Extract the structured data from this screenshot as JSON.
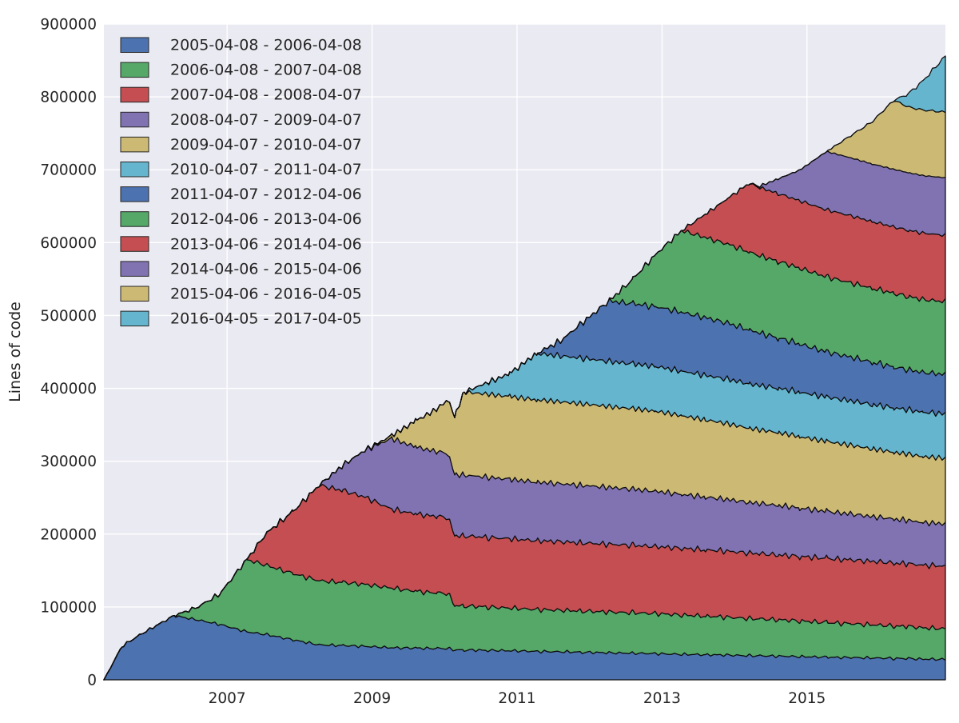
{
  "chart_data": {
    "type": "area",
    "stacked": true,
    "title": "",
    "xlabel": "",
    "ylabel": "Lines of code",
    "xlim": [
      2005.3,
      2016.91
    ],
    "ylim": [
      0,
      900000
    ],
    "grid": true,
    "legend_position": "upper left",
    "x_ticks": {
      "values": [
        2007,
        2009,
        2011,
        2013,
        2015
      ],
      "labels": [
        "2007",
        "2009",
        "2011",
        "2013",
        "2015"
      ]
    },
    "y_ticks": {
      "values": [
        0,
        100000,
        200000,
        300000,
        400000,
        500000,
        600000,
        700000,
        800000,
        900000
      ],
      "labels": [
        "0",
        "100000",
        "200000",
        "300000",
        "400000",
        "500000",
        "600000",
        "700000",
        "800000",
        "900000"
      ]
    },
    "x": [
      2005.3,
      2005.55,
      2005.8,
      2006.05,
      2006.27,
      2006.6,
      2006.9,
      2007.27,
      2007.55,
      2007.9,
      2008.27,
      2008.6,
      2008.9,
      2009.27,
      2009.6,
      2009.9,
      2010.05,
      2010.14,
      2010.27,
      2010.6,
      2010.9,
      2011.27,
      2011.6,
      2011.9,
      2012.27,
      2012.6,
      2012.9,
      2013.27,
      2013.6,
      2013.9,
      2014.2,
      2014.35,
      2014.6,
      2014.9,
      2015.27,
      2015.6,
      2015.9,
      2016.2,
      2016.4,
      2016.6,
      2016.91
    ],
    "series": [
      {
        "name": "2005-04-08 - 2006-04-08",
        "color": "#4C72B0",
        "values": [
          0,
          46000,
          62000,
          76000,
          88000,
          82000,
          76000,
          66000,
          62000,
          55000,
          48000,
          47000,
          46000,
          44000,
          43500,
          43000,
          43000,
          41000,
          41000,
          40500,
          40000,
          39000,
          38500,
          38000,
          37000,
          36500,
          36000,
          35000,
          34500,
          34000,
          33000,
          33000,
          32500,
          32000,
          31000,
          30500,
          30000,
          29500,
          29000,
          28500,
          28000
        ]
      },
      {
        "name": "2006-04-08 - 2007-04-08",
        "color": "#55A868",
        "values": [
          0,
          0,
          0,
          0,
          0,
          18000,
          42000,
          99000,
          95000,
          91000,
          88000,
          86500,
          85000,
          82000,
          78000,
          76000,
          75500,
          61000,
          60500,
          59500,
          58500,
          57500,
          57000,
          56500,
          56000,
          55500,
          55000,
          54000,
          53000,
          52000,
          51000,
          50500,
          50000,
          49000,
          47500,
          46500,
          45500,
          44500,
          44000,
          43000,
          42000
        ]
      },
      {
        "name": "2007-04-08 - 2008-04-07",
        "color": "#C44E52",
        "values": [
          0,
          0,
          0,
          0,
          0,
          0,
          0,
          0,
          45000,
          84000,
          131000,
          126000,
          120000,
          108000,
          106000,
          105000,
          104500,
          96000,
          96000,
          95500,
          95000,
          94500,
          94000,
          93500,
          93000,
          92500,
          92000,
          91500,
          91000,
          90500,
          90000,
          89500,
          89000,
          88500,
          88000,
          87500,
          87000,
          86500,
          86000,
          86000,
          86000
        ]
      },
      {
        "name": "2008-04-07 - 2009-04-07",
        "color": "#8172B2",
        "values": [
          0,
          0,
          0,
          0,
          0,
          0,
          0,
          0,
          0,
          0,
          0,
          35000,
          64000,
          97000,
          92000,
          89000,
          88000,
          84000,
          83500,
          82500,
          81500,
          80500,
          79500,
          79000,
          78000,
          77000,
          76000,
          74000,
          72500,
          71000,
          69500,
          69000,
          68000,
          66500,
          64500,
          63000,
          61500,
          60500,
          59500,
          58500,
          58000
        ]
      },
      {
        "name": "2009-04-07 - 2010-04-07",
        "color": "#CCB974",
        "values": [
          0,
          0,
          0,
          0,
          0,
          0,
          0,
          0,
          0,
          0,
          0,
          0,
          0,
          4000,
          35500,
          59000,
          74000,
          80000,
          114000,
          114000,
          113500,
          113000,
          112500,
          112000,
          111000,
          110500,
          110000,
          108000,
          106000,
          104000,
          102000,
          101000,
          100000,
          98000,
          96000,
          94500,
          93000,
          91500,
          91000,
          90500,
          90000
        ]
      },
      {
        "name": "2010-04-07 - 2011-04-07",
        "color": "#64B5CD",
        "values": [
          0,
          0,
          0,
          0,
          0,
          0,
          0,
          0,
          0,
          0,
          0,
          0,
          0,
          0,
          0,
          0,
          0,
          0,
          0,
          16000,
          31500,
          63500,
          63000,
          62500,
          62000,
          61500,
          61500,
          61000,
          61000,
          61000,
          61000,
          61000,
          61000,
          61000,
          61000,
          61000,
          61000,
          61000,
          61000,
          61000,
          61000
        ]
      },
      {
        "name": "2011-04-07 - 2012-04-06",
        "color": "#4C72B0",
        "values": [
          0,
          0,
          0,
          0,
          0,
          0,
          0,
          0,
          0,
          0,
          0,
          0,
          0,
          0,
          0,
          0,
          0,
          0,
          0,
          0,
          0,
          0,
          20500,
          48500,
          83000,
          82500,
          82000,
          81000,
          79000,
          77000,
          74000,
          72000,
          69000,
          66000,
          62000,
          60000,
          58000,
          56000,
          55000,
          54500,
          54000
        ]
      },
      {
        "name": "2012-04-06 - 2013-04-06",
        "color": "#55A868",
        "values": [
          0,
          0,
          0,
          0,
          0,
          0,
          0,
          0,
          0,
          0,
          0,
          0,
          0,
          0,
          0,
          0,
          0,
          0,
          0,
          0,
          0,
          0,
          0,
          0,
          0,
          34000,
          70000,
          112000,
          110000,
          108500,
          107000,
          106000,
          105000,
          104000,
          103000,
          102000,
          101500,
          101000,
          100500,
          100000,
          100000
        ]
      },
      {
        "name": "2013-04-06 - 2014-04-06",
        "color": "#C44E52",
        "values": [
          0,
          0,
          0,
          0,
          0,
          0,
          0,
          0,
          0,
          0,
          0,
          0,
          0,
          0,
          0,
          0,
          0,
          0,
          0,
          0,
          0,
          0,
          0,
          0,
          0,
          0,
          0,
          0,
          32000,
          62000,
          94000,
          93500,
          93000,
          92500,
          92000,
          92000,
          91500,
          91000,
          91000,
          91000,
          91000
        ]
      },
      {
        "name": "2014-04-06 - 2015-04-06",
        "color": "#8172B2",
        "values": [
          0,
          0,
          0,
          0,
          0,
          0,
          0,
          0,
          0,
          0,
          0,
          0,
          0,
          0,
          0,
          0,
          0,
          0,
          0,
          0,
          0,
          0,
          0,
          0,
          0,
          0,
          0,
          0,
          0,
          0,
          0,
          2000,
          20000,
          42000,
          80000,
          79500,
          79000,
          79000,
          79000,
          79000,
          79000
        ]
      },
      {
        "name": "2015-04-06 - 2016-04-05",
        "color": "#CCB974",
        "values": [
          0,
          0,
          0,
          0,
          0,
          0,
          0,
          0,
          0,
          0,
          0,
          0,
          0,
          0,
          0,
          0,
          0,
          0,
          0,
          0,
          0,
          0,
          0,
          0,
          0,
          0,
          0,
          0,
          0,
          0,
          0,
          0,
          0,
          0,
          0,
          30000,
          58000,
          95000,
          90000,
          90000,
          90000
        ]
      },
      {
        "name": "2016-04-05 - 2017-04-05",
        "color": "#64B5CD",
        "values": [
          0,
          0,
          0,
          0,
          0,
          0,
          0,
          0,
          0,
          0,
          0,
          0,
          0,
          0,
          0,
          0,
          0,
          0,
          0,
          0,
          0,
          0,
          0,
          0,
          0,
          0,
          0,
          0,
          0,
          0,
          0,
          0,
          0,
          0,
          0,
          0,
          0,
          0,
          18000,
          40000,
          77000
        ]
      }
    ],
    "style": {
      "plot_bg": "#EAEAF2",
      "grid_color": "#FFFFFF",
      "text_color": "#262626",
      "band_edge_color": "#0D0D0D",
      "figure_bg": "#FFFFFF"
    }
  },
  "legend": {
    "entries": [
      "2005-04-08 - 2006-04-08",
      "2006-04-08 - 2007-04-08",
      "2007-04-08 - 2008-04-07",
      "2008-04-07 - 2009-04-07",
      "2009-04-07 - 2010-04-07",
      "2010-04-07 - 2011-04-07",
      "2011-04-07 - 2012-04-06",
      "2012-04-06 - 2013-04-06",
      "2013-04-06 - 2014-04-06",
      "2014-04-06 - 2015-04-06",
      "2015-04-06 - 2016-04-05",
      "2016-04-05 - 2017-04-05"
    ]
  }
}
